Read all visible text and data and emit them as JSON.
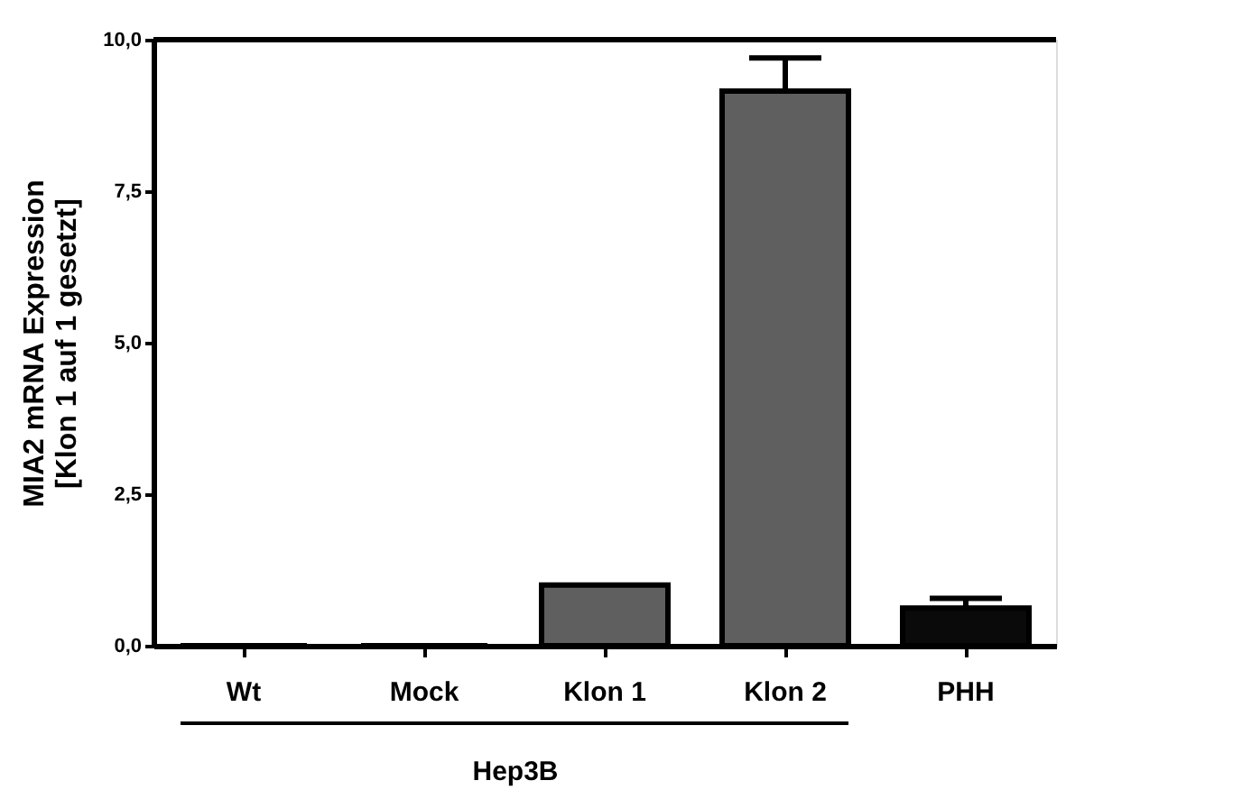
{
  "chart_data": {
    "type": "bar",
    "ylabel": "MIA2 mRNA Expression\n[Klon 1 auf 1 gesetzt]",
    "xlabel": "Hep3B",
    "categories": [
      "Wt",
      "Mock",
      "Klon 1",
      "Klon 2",
      "PHH"
    ],
    "values": [
      0,
      0,
      1.0,
      9.15,
      0.62
    ],
    "colors": [
      "#5f5f5f",
      "#5f5f5f",
      "#5f5f5f",
      "#5f5f5f",
      "#0a0a0a"
    ],
    "errors": [
      null,
      null,
      null,
      [
        9.15,
        9.7
      ],
      [
        0.62,
        0.78
      ]
    ],
    "ylim": [
      0,
      10
    ],
    "yticks": [
      {
        "value": 0,
        "label": "0,0"
      },
      {
        "value": 2.5,
        "label": "2,5"
      },
      {
        "value": 5,
        "label": "5,0"
      },
      {
        "value": 7.5,
        "label": "7,5"
      },
      {
        "value": 10,
        "label": "10,0"
      }
    ],
    "grid": false
  }
}
